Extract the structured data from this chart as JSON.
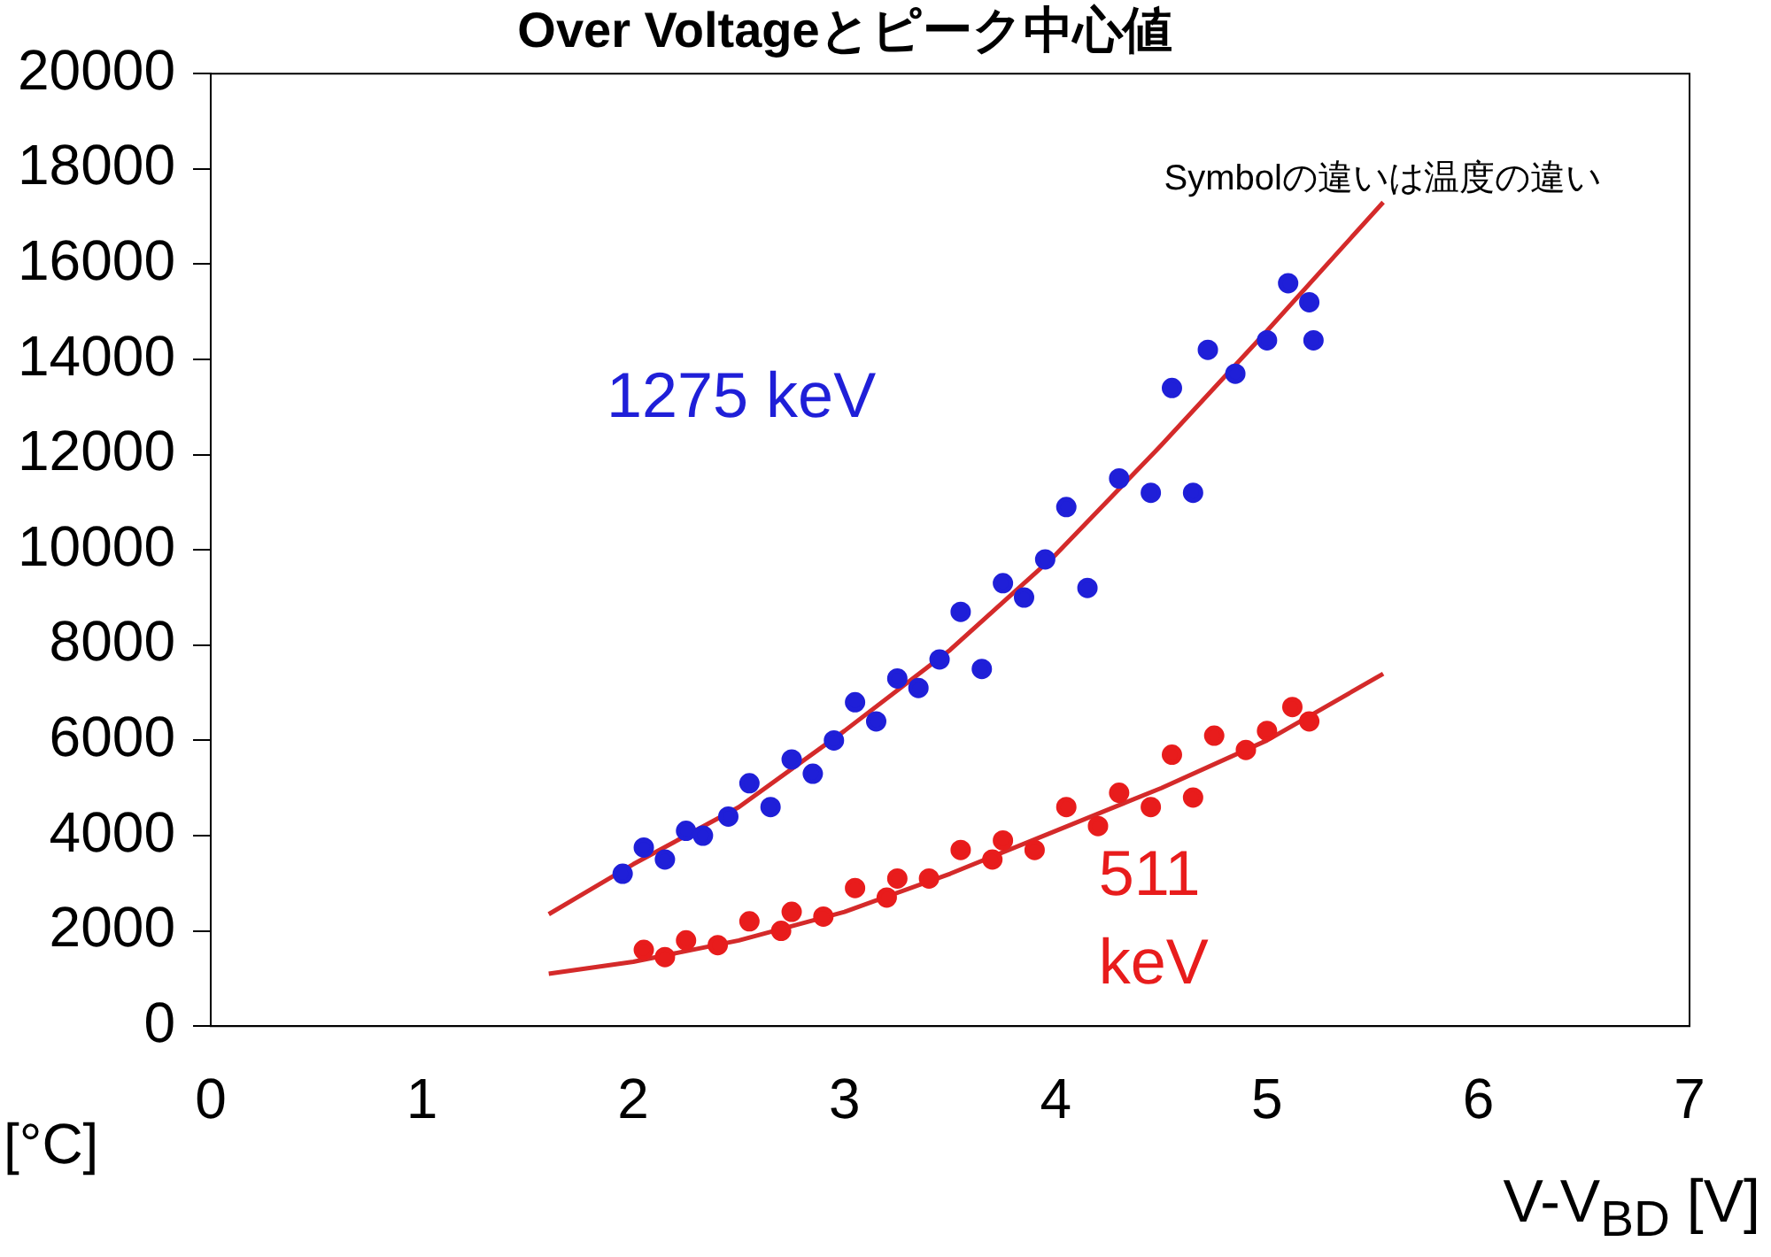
{
  "chart_data": {
    "type": "scatter",
    "title": "Over Voltageとピーク中心値",
    "xlabel": "V-V$_{BD}$ [V]",
    "annotations": [
      "Symbolの違いは温度の違い",
      "[°C]"
    ],
    "xlim": [
      0,
      7
    ],
    "xticks": [
      0,
      1,
      2,
      3,
      4,
      5,
      6,
      7
    ],
    "ylim": [
      0,
      20000
    ],
    "yticks": [
      0,
      2000,
      4000,
      6000,
      8000,
      10000,
      12000,
      14000,
      16000,
      18000,
      20000
    ],
    "grid": false,
    "legend": false,
    "marker": "circle",
    "series": [
      {
        "name": "1275 keV",
        "color": "#1f1fd8",
        "x": [
          1.95,
          2.05,
          2.15,
          2.25,
          2.33,
          2.45,
          2.55,
          2.65,
          2.75,
          2.85,
          2.95,
          3.05,
          3.15,
          3.25,
          3.35,
          3.45,
          3.55,
          3.65,
          3.75,
          3.85,
          3.95,
          4.05,
          4.15,
          4.3,
          4.45,
          4.55,
          4.65,
          4.72,
          4.85,
          5.0,
          5.1,
          5.2,
          5.22
        ],
        "values": [
          3200,
          3750,
          3500,
          4100,
          4000,
          4400,
          5100,
          4600,
          5600,
          5300,
          6000,
          6800,
          6400,
          7300,
          7100,
          7700,
          8700,
          7500,
          9300,
          9000,
          9800,
          10900,
          9200,
          11500,
          11200,
          13400,
          11200,
          14200,
          13700,
          14400,
          15600,
          15200,
          14400
        ]
      },
      {
        "name": "511 keV",
        "color": "#e81c1c",
        "x": [
          2.05,
          2.15,
          2.25,
          2.4,
          2.55,
          2.7,
          2.75,
          2.9,
          3.05,
          3.2,
          3.25,
          3.4,
          3.55,
          3.7,
          3.75,
          3.9,
          4.05,
          4.2,
          4.3,
          4.45,
          4.55,
          4.65,
          4.75,
          4.9,
          5.0,
          5.12,
          5.2
        ],
        "values": [
          1600,
          1450,
          1800,
          1700,
          2200,
          2000,
          2400,
          2300,
          2900,
          2700,
          3100,
          3100,
          3700,
          3500,
          3900,
          3700,
          4600,
          4200,
          4900,
          4600,
          5700,
          4800,
          6100,
          5800,
          6200,
          6700,
          6400
        ]
      },
      {
        "type": "line",
        "marker": "none",
        "color": "#d42a2a",
        "x": [
          1.6,
          2,
          2.5,
          3,
          3.5,
          4,
          4.5,
          5,
          5.55
        ],
        "values": [
          2350,
          3400,
          4600,
          6200,
          7900,
          9900,
          12200,
          14600,
          17300
        ]
      },
      {
        "type": "line",
        "marker": "none",
        "color": "#d42a2a",
        "x": [
          1.6,
          2,
          2.5,
          3,
          3.5,
          4,
          4.5,
          5,
          5.55
        ],
        "values": [
          1100,
          1350,
          1800,
          2400,
          3200,
          4100,
          5000,
          6000,
          7400
        ]
      }
    ]
  }
}
